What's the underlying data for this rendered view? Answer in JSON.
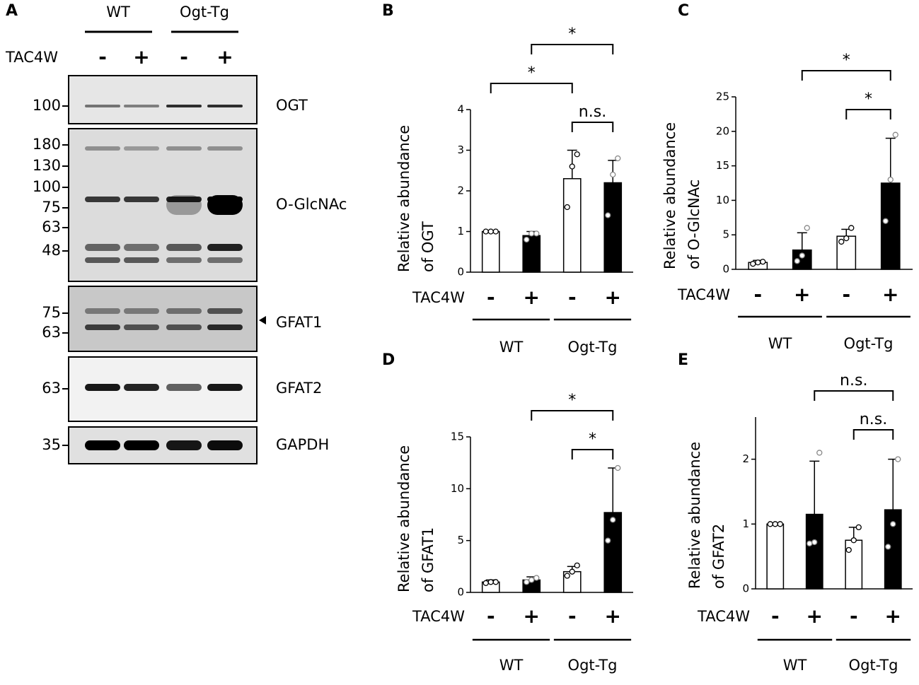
{
  "blot": {
    "label": "A",
    "groups": [
      "WT",
      "Ogt-Tg"
    ],
    "row_label": "TAC4W",
    "signs": [
      "-",
      "+",
      "-",
      "+"
    ],
    "panels": [
      {
        "name": "OGT",
        "markers": [
          "100"
        ]
      },
      {
        "name": "O-GlcNAc",
        "markers": [
          "180",
          "130",
          "100",
          "75",
          "63",
          "48"
        ]
      },
      {
        "name": "GFAT1",
        "markers": [
          "75",
          "63"
        ]
      },
      {
        "name": "GFAT2",
        "markers": [
          "63"
        ]
      },
      {
        "name": "GAPDH",
        "markers": [
          "35"
        ]
      }
    ]
  },
  "chart_data": [
    {
      "type": "bar",
      "label": "B",
      "ylabel": [
        "Relative  abundance",
        "of OGT"
      ],
      "row_label": "TAC4W",
      "categories": [
        "-",
        "+",
        "-",
        "+"
      ],
      "groups": [
        "WT",
        "Ogt-Tg"
      ],
      "fills": [
        "#ffffff",
        "#000000",
        "#ffffff",
        "#000000"
      ],
      "values": [
        1,
        0.9,
        2.3,
        2.2
      ],
      "errors": [
        0,
        0.1,
        0.7,
        0.55
      ],
      "points": [
        [
          1,
          1,
          1
        ],
        [
          0.8,
          0.95,
          0.95
        ],
        [
          1.6,
          2.6,
          2.9
        ],
        [
          1.4,
          2.4,
          2.8
        ]
      ],
      "ylim": [
        0,
        4
      ],
      "yticks": [
        0,
        1,
        2,
        3,
        4
      ],
      "annotations": [
        {
          "label": "n.s.",
          "between": [
            2,
            3
          ]
        },
        {
          "label": "*",
          "between": [
            0,
            2
          ]
        },
        {
          "label": "*",
          "between": [
            1,
            3
          ]
        }
      ]
    },
    {
      "type": "bar",
      "label": "C",
      "ylabel": [
        "Relative  abundance",
        "of O-GlcNAc"
      ],
      "row_label": "TAC4W",
      "categories": [
        "-",
        "+",
        "-",
        "+"
      ],
      "groups": [
        "WT",
        "Ogt-Tg"
      ],
      "fills": [
        "#ffffff",
        "#000000",
        "#ffffff",
        "#000000"
      ],
      "values": [
        1,
        2.8,
        4.8,
        12.5
      ],
      "errors": [
        0.3,
        2.5,
        1,
        6.5
      ],
      "points": [
        [
          0.8,
          1,
          1.1
        ],
        [
          1.2,
          2,
          6
        ],
        [
          4,
          4.5,
          6
        ],
        [
          7,
          13,
          19.5
        ]
      ],
      "ylim": [
        0,
        25
      ],
      "yticks": [
        0,
        5,
        10,
        15,
        20,
        25
      ],
      "annotations": [
        {
          "label": "*",
          "between": [
            2,
            3
          ]
        },
        {
          "label": "*",
          "between": [
            1,
            3
          ]
        }
      ]
    },
    {
      "type": "bar",
      "label": "D",
      "ylabel": [
        "Relative  abundance",
        "of GFAT1"
      ],
      "row_label": "TAC4W",
      "categories": [
        "-",
        "+",
        "-",
        "+"
      ],
      "groups": [
        "WT",
        "Ogt-Tg"
      ],
      "fills": [
        "#ffffff",
        "#000000",
        "#ffffff",
        "#000000"
      ],
      "values": [
        1,
        1.2,
        2,
        7.7
      ],
      "errors": [
        0.2,
        0.3,
        0.5,
        4.3
      ],
      "points": [
        [
          0.9,
          1,
          1
        ],
        [
          1,
          1.2,
          1.4
        ],
        [
          1.6,
          2,
          2.6
        ],
        [
          5,
          7,
          12
        ]
      ],
      "ylim": [
        0,
        15
      ],
      "yticks": [
        0,
        5,
        10,
        15
      ],
      "annotations": [
        {
          "label": "*",
          "between": [
            2,
            3
          ]
        },
        {
          "label": "*",
          "between": [
            1,
            3
          ]
        }
      ]
    },
    {
      "type": "bar",
      "label": "E",
      "ylabel": [
        "Relative  abundance",
        "of GFAT2"
      ],
      "row_label": "TAC4W",
      "categories": [
        "-",
        "+",
        "-",
        "+"
      ],
      "groups": [
        "WT",
        "Ogt-Tg"
      ],
      "fills": [
        "#ffffff",
        "#000000",
        "#ffffff",
        "#000000"
      ],
      "values": [
        1,
        1.15,
        0.75,
        1.22
      ],
      "errors": [
        0,
        0.82,
        0.2,
        0.78
      ],
      "points": [
        [
          1,
          1,
          1
        ],
        [
          0.7,
          0.72,
          2.1
        ],
        [
          0.6,
          0.75,
          0.95
        ],
        [
          0.65,
          1,
          2
        ]
      ],
      "ylim": [
        0,
        2.65
      ],
      "yticks": [
        0,
        1,
        2
      ],
      "annotations": [
        {
          "label": "n.s.",
          "between": [
            2,
            3
          ]
        },
        {
          "label": "n.s.",
          "between": [
            1,
            3
          ]
        }
      ]
    }
  ]
}
